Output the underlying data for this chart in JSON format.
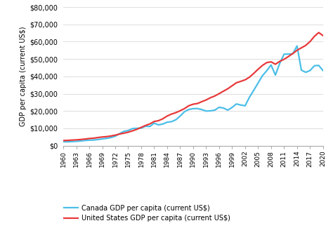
{
  "years": [
    1960,
    1961,
    1962,
    1963,
    1964,
    1965,
    1966,
    1967,
    1968,
    1969,
    1970,
    1971,
    1972,
    1973,
    1974,
    1975,
    1976,
    1977,
    1978,
    1979,
    1980,
    1981,
    1982,
    1983,
    1984,
    1985,
    1986,
    1987,
    1988,
    1989,
    1990,
    1991,
    1992,
    1993,
    1994,
    1995,
    1996,
    1997,
    1998,
    1999,
    2000,
    2001,
    2002,
    2003,
    2004,
    2005,
    2006,
    2007,
    2008,
    2009,
    2010,
    2011,
    2012,
    2013,
    2014,
    2015,
    2016,
    2017,
    2018,
    2019,
    2020
  ],
  "canada": [
    2294,
    2231,
    2384,
    2496,
    2736,
    3008,
    3188,
    3259,
    3569,
    3899,
    4255,
    4686,
    5488,
    6931,
    8275,
    8772,
    9872,
    10049,
    10159,
    11228,
    11080,
    13007,
    12009,
    12505,
    13571,
    13873,
    14956,
    17098,
    19618,
    20926,
    21380,
    21427,
    20842,
    19971,
    20099,
    20539,
    22145,
    21745,
    20539,
    22115,
    24087,
    23491,
    23019,
    27955,
    32004,
    36166,
    40378,
    43254,
    46595,
    40773,
    47447,
    52795,
    52884,
    52960,
    57552,
    43622,
    42348,
    43340,
    46125,
    46327,
    43373
  ],
  "usa": [
    3007,
    3067,
    3244,
    3374,
    3574,
    3828,
    4146,
    4336,
    4696,
    5032,
    5234,
    5609,
    6094,
    6726,
    7226,
    7801,
    8592,
    9452,
    10565,
    11674,
    12575,
    13976,
    14434,
    15544,
    17121,
    18237,
    19071,
    20182,
    21417,
    23059,
    23954,
    24342,
    25419,
    26387,
    27695,
    28691,
    30027,
    31459,
    32854,
    34601,
    36330,
    37134,
    38007,
    39517,
    41725,
    44114,
    46300,
    47954,
    48395,
    46999,
    48651,
    49855,
    51450,
    53142,
    55050,
    56469,
    57867,
    60062,
    63064,
    65281,
    63544
  ],
  "canada_color": "#4BBEE8",
  "usa_color": "#e8393a",
  "ylabel": "GDP per capita (current US$)",
  "ylim": [
    0,
    80000
  ],
  "yticks": [
    0,
    10000,
    20000,
    30000,
    40000,
    50000,
    60000,
    70000,
    80000
  ],
  "background_color": "#ffffff",
  "legend_canada": "Canada GDP per capita (current US$)",
  "legend_usa": "United States GDP per capita (current US$)",
  "tick_years": [
    1960,
    1963,
    1966,
    1969,
    1972,
    1975,
    1978,
    1981,
    1984,
    1987,
    1990,
    1993,
    1996,
    1999,
    2002,
    2005,
    2008,
    2011,
    2014,
    2017,
    2020
  ]
}
